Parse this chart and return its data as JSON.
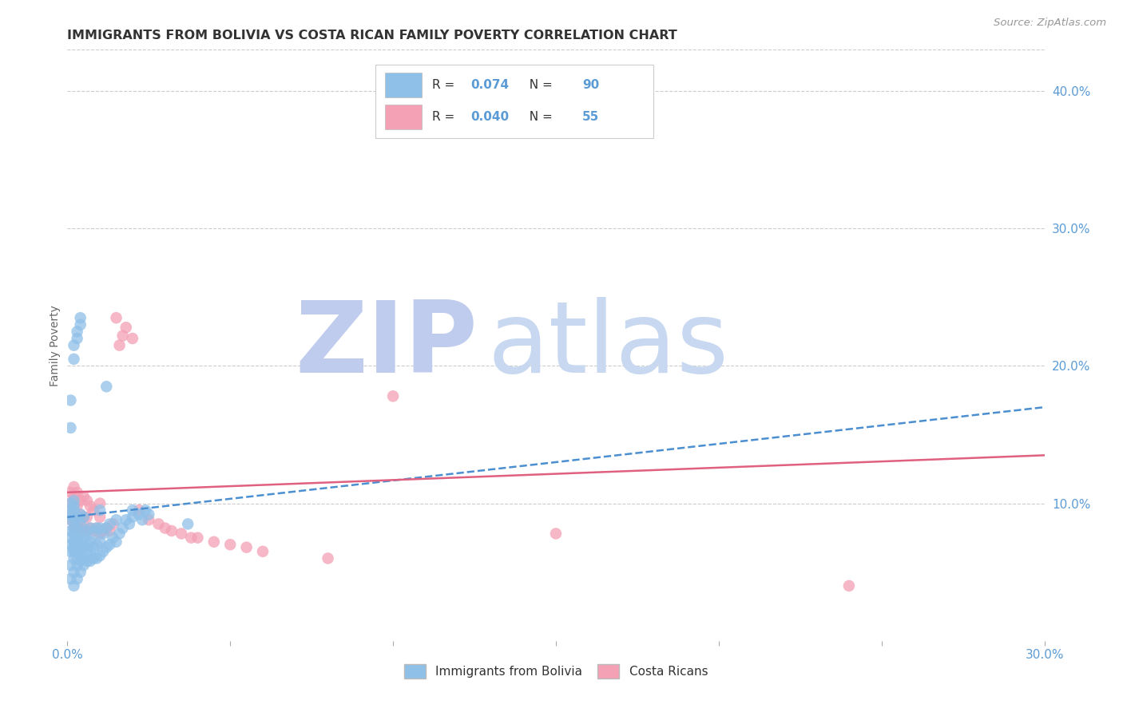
{
  "title": "IMMIGRANTS FROM BOLIVIA VS COSTA RICAN FAMILY POVERTY CORRELATION CHART",
  "source": "Source: ZipAtlas.com",
  "ylabel": "Family Poverty",
  "legend_labels": [
    "Immigrants from Bolivia",
    "Costa Ricans"
  ],
  "r_values": [
    0.074,
    0.04
  ],
  "n_values": [
    90,
    55
  ],
  "blue_color": "#8FC0E8",
  "pink_color": "#F4A0B5",
  "trend_blue_color": "#4B8FD0",
  "trend_pink_color": "#E06080",
  "axis_label_color": "#5B9BD5",
  "title_color": "#333333",
  "background_color": "#FFFFFF",
  "grid_color": "#CCCCCC",
  "xlim": [
    0.0,
    0.3
  ],
  "ylim": [
    0.0,
    0.43
  ],
  "xticks": [
    0.0,
    0.05,
    0.1,
    0.15,
    0.2,
    0.25,
    0.3
  ],
  "xticklabels": [
    "0.0%",
    "",
    "",
    "",
    "",
    "",
    "30.0%"
  ],
  "yticks_right": [
    0.1,
    0.2,
    0.3,
    0.4
  ],
  "ytick_right_labels": [
    "10.0%",
    "20.0%",
    "30.0%",
    "40.0%"
  ],
  "bolivia_x": [
    0.001,
    0.001,
    0.001,
    0.001,
    0.001,
    0.001,
    0.001,
    0.001,
    0.001,
    0.001,
    0.002,
    0.002,
    0.002,
    0.002,
    0.002,
    0.002,
    0.002,
    0.002,
    0.002,
    0.002,
    0.002,
    0.002,
    0.002,
    0.003,
    0.003,
    0.003,
    0.003,
    0.003,
    0.003,
    0.003,
    0.003,
    0.004,
    0.004,
    0.004,
    0.004,
    0.004,
    0.004,
    0.004,
    0.005,
    0.005,
    0.005,
    0.005,
    0.005,
    0.006,
    0.006,
    0.006,
    0.006,
    0.007,
    0.007,
    0.007,
    0.007,
    0.008,
    0.008,
    0.008,
    0.009,
    0.009,
    0.009,
    0.01,
    0.01,
    0.01,
    0.01,
    0.011,
    0.011,
    0.012,
    0.012,
    0.013,
    0.013,
    0.014,
    0.015,
    0.015,
    0.016,
    0.017,
    0.018,
    0.019,
    0.02,
    0.02,
    0.022,
    0.023,
    0.024,
    0.025,
    0.001,
    0.001,
    0.002,
    0.002,
    0.003,
    0.003,
    0.004,
    0.004,
    0.012,
    0.037
  ],
  "bolivia_y": [
    0.045,
    0.055,
    0.065,
    0.07,
    0.075,
    0.08,
    0.088,
    0.092,
    0.095,
    0.1,
    0.04,
    0.05,
    0.06,
    0.065,
    0.068,
    0.072,
    0.078,
    0.082,
    0.088,
    0.09,
    0.095,
    0.098,
    0.102,
    0.045,
    0.055,
    0.06,
    0.065,
    0.07,
    0.075,
    0.082,
    0.09,
    0.05,
    0.058,
    0.065,
    0.07,
    0.078,
    0.085,
    0.092,
    0.055,
    0.06,
    0.068,
    0.075,
    0.09,
    0.058,
    0.065,
    0.072,
    0.08,
    0.058,
    0.065,
    0.072,
    0.082,
    0.06,
    0.068,
    0.078,
    0.06,
    0.07,
    0.082,
    0.062,
    0.072,
    0.082,
    0.095,
    0.065,
    0.078,
    0.068,
    0.082,
    0.07,
    0.085,
    0.075,
    0.072,
    0.088,
    0.078,
    0.082,
    0.088,
    0.085,
    0.09,
    0.095,
    0.092,
    0.088,
    0.095,
    0.092,
    0.155,
    0.175,
    0.205,
    0.215,
    0.22,
    0.225,
    0.23,
    0.235,
    0.185,
    0.085
  ],
  "costarica_x": [
    0.001,
    0.001,
    0.001,
    0.001,
    0.002,
    0.002,
    0.002,
    0.002,
    0.002,
    0.003,
    0.003,
    0.003,
    0.003,
    0.004,
    0.004,
    0.004,
    0.005,
    0.005,
    0.005,
    0.006,
    0.006,
    0.006,
    0.007,
    0.007,
    0.008,
    0.008,
    0.009,
    0.01,
    0.01,
    0.01,
    0.011,
    0.012,
    0.013,
    0.014,
    0.015,
    0.016,
    0.017,
    0.018,
    0.02,
    0.022,
    0.025,
    0.028,
    0.03,
    0.032,
    0.035,
    0.038,
    0.04,
    0.045,
    0.05,
    0.055,
    0.06,
    0.15,
    0.24,
    0.08,
    0.1
  ],
  "costarica_y": [
    0.088,
    0.092,
    0.1,
    0.108,
    0.082,
    0.09,
    0.098,
    0.105,
    0.112,
    0.082,
    0.09,
    0.098,
    0.108,
    0.082,
    0.092,
    0.102,
    0.082,
    0.09,
    0.105,
    0.08,
    0.09,
    0.102,
    0.082,
    0.098,
    0.08,
    0.095,
    0.082,
    0.078,
    0.09,
    0.1,
    0.08,
    0.082,
    0.08,
    0.085,
    0.235,
    0.215,
    0.222,
    0.228,
    0.22,
    0.095,
    0.088,
    0.085,
    0.082,
    0.08,
    0.078,
    0.075,
    0.075,
    0.072,
    0.07,
    0.068,
    0.065,
    0.078,
    0.04,
    0.06,
    0.178
  ],
  "watermark_zip": "ZIP",
  "watermark_atlas": "atlas",
  "watermark_color_zip": "#C0CCEE",
  "watermark_color_atlas": "#C8D8F0",
  "watermark_fontsize": 90
}
